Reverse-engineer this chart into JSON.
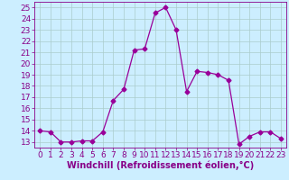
{
  "x": [
    0,
    1,
    2,
    3,
    4,
    5,
    6,
    7,
    8,
    9,
    10,
    11,
    12,
    13,
    14,
    15,
    16,
    17,
    18,
    19,
    20,
    21,
    22,
    23
  ],
  "y": [
    14.0,
    13.9,
    13.0,
    13.0,
    13.1,
    13.1,
    13.9,
    16.7,
    17.7,
    21.2,
    21.3,
    24.5,
    25.0,
    23.0,
    17.5,
    19.3,
    19.2,
    19.0,
    18.5,
    12.8,
    13.5,
    13.9,
    13.9,
    13.3
  ],
  "xlabel": "Windchill (Refroidissement éolien,°C)",
  "ylim": [
    12.5,
    25.5
  ],
  "xlim": [
    -0.5,
    23.5
  ],
  "yticks": [
    13,
    14,
    15,
    16,
    17,
    18,
    19,
    20,
    21,
    22,
    23,
    24,
    25
  ],
  "xticks": [
    0,
    1,
    2,
    3,
    4,
    5,
    6,
    7,
    8,
    9,
    10,
    11,
    12,
    13,
    14,
    15,
    16,
    17,
    18,
    19,
    20,
    21,
    22,
    23
  ],
  "line_color": "#990099",
  "marker": "D",
  "marker_size": 2.5,
  "bg_color": "#cceeff",
  "grid_color": "#aacccc",
  "font_color": "#880088",
  "xlabel_fontsize": 7,
  "tick_fontsize": 6.5
}
